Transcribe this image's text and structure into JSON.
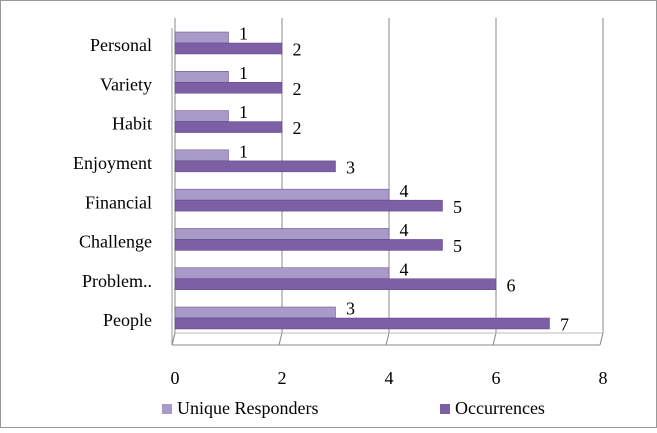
{
  "chart_data": {
    "type": "bar",
    "orientation": "horizontal",
    "categories": [
      "Personal",
      "Variety",
      "Habit",
      "Enjoyment",
      "Financial",
      "Challenge",
      "Problem..",
      "People"
    ],
    "series": [
      {
        "name": "Unique Responders",
        "color": "#a99bc9",
        "values": [
          1,
          1,
          1,
          1,
          4,
          4,
          4,
          3
        ]
      },
      {
        "name": "Occurrences",
        "color": "#7c5fa4",
        "values": [
          2,
          2,
          2,
          3,
          5,
          5,
          6,
          7
        ]
      }
    ],
    "xlim": [
      0,
      8
    ],
    "xticks": [
      0,
      2,
      4,
      6,
      8
    ],
    "grid": true,
    "legend": "bottom"
  }
}
